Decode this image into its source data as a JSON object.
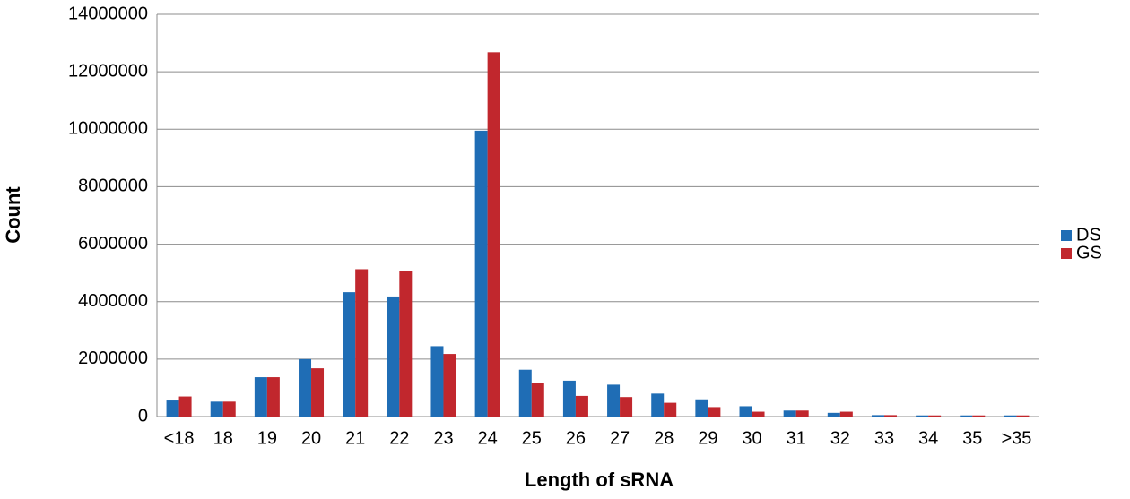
{
  "chart_data": {
    "type": "bar",
    "x_label": "Length of sRNA",
    "y_label": "Count",
    "categories": [
      "<18",
      "18",
      "19",
      "20",
      "21",
      "22",
      "23",
      "24",
      "25",
      "26",
      "27",
      "28",
      "29",
      "30",
      "31",
      "32",
      "33",
      "34",
      "35",
      ">35"
    ],
    "series": [
      {
        "name": "DS",
        "color": "#1f6db5",
        "values": [
          560000,
          520000,
          1370000,
          2000000,
          4330000,
          4180000,
          2450000,
          9950000,
          1630000,
          1250000,
          1110000,
          800000,
          600000,
          360000,
          210000,
          130000,
          50000,
          40000,
          40000,
          40000
        ]
      },
      {
        "name": "GS",
        "color": "#c1272d",
        "values": [
          700000,
          520000,
          1370000,
          1680000,
          5130000,
          5060000,
          2180000,
          12680000,
          1160000,
          720000,
          680000,
          480000,
          330000,
          170000,
          210000,
          170000,
          50000,
          40000,
          40000,
          40000
        ]
      }
    ],
    "ylim": [
      0,
      14000000
    ],
    "yticks": [
      0,
      2000000,
      4000000,
      6000000,
      8000000,
      10000000,
      12000000,
      14000000
    ],
    "grid": true,
    "legend": "right"
  }
}
